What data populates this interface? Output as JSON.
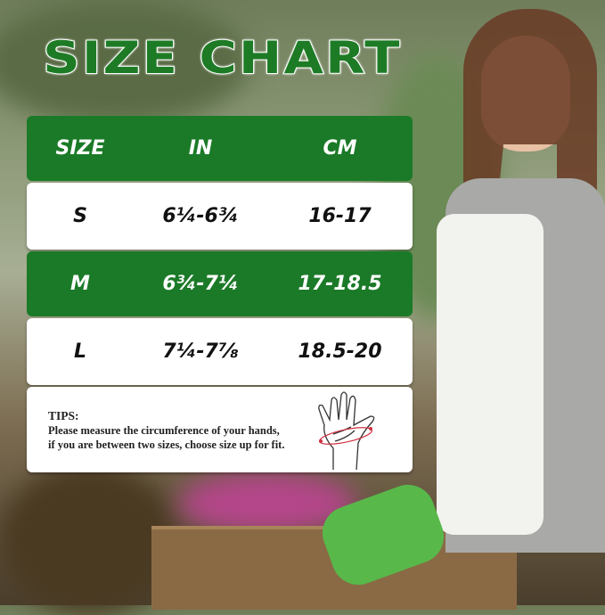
{
  "title": "SIZE CHART",
  "table": {
    "headers": [
      "SIZE",
      "IN",
      "CM"
    ],
    "rows": [
      {
        "size": "S",
        "in": "6¼-6¾",
        "cm": "16-17"
      },
      {
        "size": "M",
        "in": "6¾-7¼",
        "cm": "17-18.5"
      },
      {
        "size": "L",
        "in": "7¼-7⅞",
        "cm": "18.5-20"
      }
    ]
  },
  "tips": {
    "heading": "TIPS:",
    "line1": "Please measure the circumference of your hands,",
    "line2": "if you are between two sizes, choose size up for fit.",
    "icon": "hand-measure-icon"
  },
  "colors": {
    "accent": "#1b7a28"
  }
}
